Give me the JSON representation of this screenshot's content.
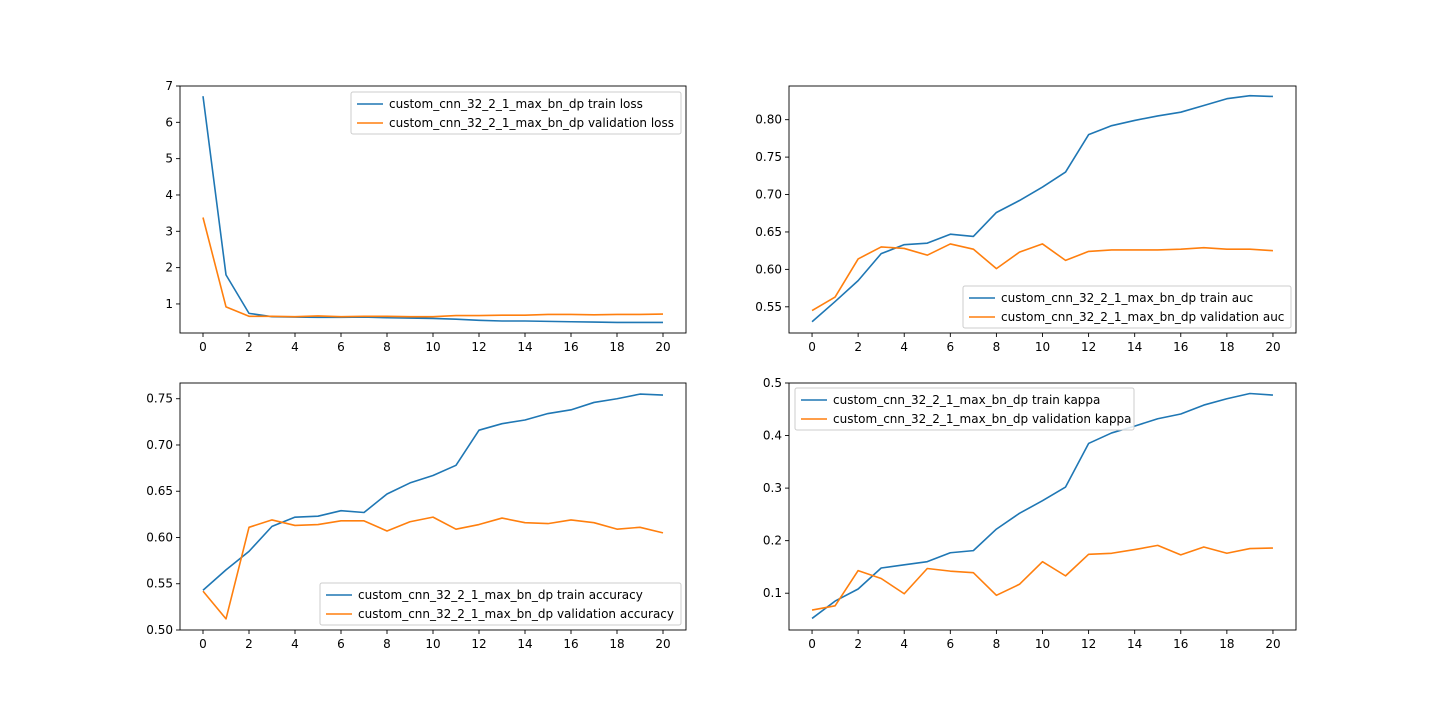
{
  "colors": {
    "train": "#1f77b4",
    "validation": "#ff7f0e"
  },
  "chart_data": [
    {
      "type": "line",
      "legend_position": "upper-right",
      "grid": false,
      "xlim": [
        -1,
        21
      ],
      "ylim": [
        0.2,
        7.0
      ],
      "xticks": [
        "0",
        "2",
        "4",
        "6",
        "8",
        "10",
        "12",
        "14",
        "16",
        "18",
        "20"
      ],
      "yticks": [
        "1",
        "2",
        "3",
        "4",
        "5",
        "6",
        "7"
      ],
      "x": [
        0,
        1,
        2,
        3,
        4,
        5,
        6,
        7,
        8,
        9,
        10,
        11,
        12,
        13,
        14,
        15,
        16,
        17,
        18,
        19,
        20
      ],
      "series": [
        {
          "name": "custom_cnn_32_2_1_max_bn_dp train loss",
          "values": [
            6.72,
            1.8,
            0.74,
            0.65,
            0.64,
            0.63,
            0.63,
            0.64,
            0.62,
            0.61,
            0.6,
            0.58,
            0.55,
            0.53,
            0.53,
            0.52,
            0.51,
            0.5,
            0.49,
            0.49,
            0.49
          ]
        },
        {
          "name": "custom_cnn_32_2_1_max_bn_dp validation loss",
          "values": [
            3.38,
            0.92,
            0.66,
            0.66,
            0.65,
            0.67,
            0.65,
            0.66,
            0.66,
            0.65,
            0.65,
            0.68,
            0.68,
            0.69,
            0.69,
            0.71,
            0.71,
            0.7,
            0.71,
            0.71,
            0.72
          ]
        }
      ]
    },
    {
      "type": "line",
      "legend_position": "lower-right",
      "grid": false,
      "xlim": [
        -1,
        21
      ],
      "ylim": [
        0.515,
        0.845
      ],
      "xticks": [
        "0",
        "2",
        "4",
        "6",
        "8",
        "10",
        "12",
        "14",
        "16",
        "18",
        "20"
      ],
      "yticks": [
        "0.55",
        "0.60",
        "0.65",
        "0.70",
        "0.75",
        "0.80"
      ],
      "x": [
        0,
        1,
        2,
        3,
        4,
        5,
        6,
        7,
        8,
        9,
        10,
        11,
        12,
        13,
        14,
        15,
        16,
        17,
        18,
        19,
        20
      ],
      "series": [
        {
          "name": "custom_cnn_32_2_1_max_bn_dp train auc",
          "values": [
            0.53,
            0.557,
            0.585,
            0.621,
            0.633,
            0.635,
            0.647,
            0.644,
            0.676,
            0.692,
            0.71,
            0.73,
            0.78,
            0.792,
            0.799,
            0.805,
            0.81,
            0.819,
            0.828,
            0.832,
            0.831
          ]
        },
        {
          "name": "custom_cnn_32_2_1_max_bn_dp validation auc",
          "values": [
            0.545,
            0.563,
            0.614,
            0.63,
            0.628,
            0.619,
            0.634,
            0.627,
            0.601,
            0.623,
            0.634,
            0.612,
            0.624,
            0.626,
            0.626,
            0.626,
            0.627,
            0.629,
            0.627,
            0.627,
            0.625
          ]
        }
      ]
    },
    {
      "type": "line",
      "legend_position": "lower-right",
      "grid": false,
      "xlim": [
        -1,
        21
      ],
      "ylim": [
        0.5,
        0.767
      ],
      "xticks": [
        "0",
        "2",
        "4",
        "6",
        "8",
        "10",
        "12",
        "14",
        "16",
        "18",
        "20"
      ],
      "yticks": [
        "0.50",
        "0.55",
        "0.60",
        "0.65",
        "0.70",
        "0.75"
      ],
      "x": [
        0,
        1,
        2,
        3,
        4,
        5,
        6,
        7,
        8,
        9,
        10,
        11,
        12,
        13,
        14,
        15,
        16,
        17,
        18,
        19,
        20
      ],
      "series": [
        {
          "name": "custom_cnn_32_2_1_max_bn_dp train accuracy",
          "values": [
            0.543,
            0.565,
            0.585,
            0.612,
            0.622,
            0.623,
            0.629,
            0.627,
            0.647,
            0.659,
            0.667,
            0.678,
            0.716,
            0.723,
            0.727,
            0.734,
            0.738,
            0.746,
            0.75,
            0.755,
            0.754
          ]
        },
        {
          "name": "custom_cnn_32_2_1_max_bn_dp validation accuracy",
          "values": [
            0.542,
            0.512,
            0.611,
            0.619,
            0.613,
            0.614,
            0.618,
            0.618,
            0.607,
            0.617,
            0.622,
            0.609,
            0.614,
            0.621,
            0.616,
            0.615,
            0.619,
            0.616,
            0.609,
            0.611,
            0.605
          ]
        }
      ]
    },
    {
      "type": "line",
      "legend_position": "upper-left",
      "grid": false,
      "xlim": [
        -1,
        21
      ],
      "ylim": [
        0.03,
        0.5
      ],
      "xticks": [
        "0",
        "2",
        "4",
        "6",
        "8",
        "10",
        "12",
        "14",
        "16",
        "18",
        "20"
      ],
      "yticks": [
        "0.1",
        "0.2",
        "0.3",
        "0.4",
        "0.5"
      ],
      "x": [
        0,
        1,
        2,
        3,
        4,
        5,
        6,
        7,
        8,
        9,
        10,
        11,
        12,
        13,
        14,
        15,
        16,
        17,
        18,
        19,
        20
      ],
      "series": [
        {
          "name": "custom_cnn_32_2_1_max_bn_dp train kappa",
          "values": [
            0.052,
            0.085,
            0.108,
            0.148,
            0.154,
            0.16,
            0.177,
            0.181,
            0.222,
            0.252,
            0.276,
            0.302,
            0.385,
            0.405,
            0.418,
            0.432,
            0.441,
            0.458,
            0.47,
            0.48,
            0.477
          ]
        },
        {
          "name": "custom_cnn_32_2_1_max_bn_dp validation kappa",
          "values": [
            0.068,
            0.076,
            0.143,
            0.128,
            0.099,
            0.147,
            0.142,
            0.139,
            0.096,
            0.117,
            0.16,
            0.133,
            0.174,
            0.176,
            0.183,
            0.191,
            0.173,
            0.188,
            0.176,
            0.185,
            0.186
          ]
        }
      ]
    }
  ]
}
